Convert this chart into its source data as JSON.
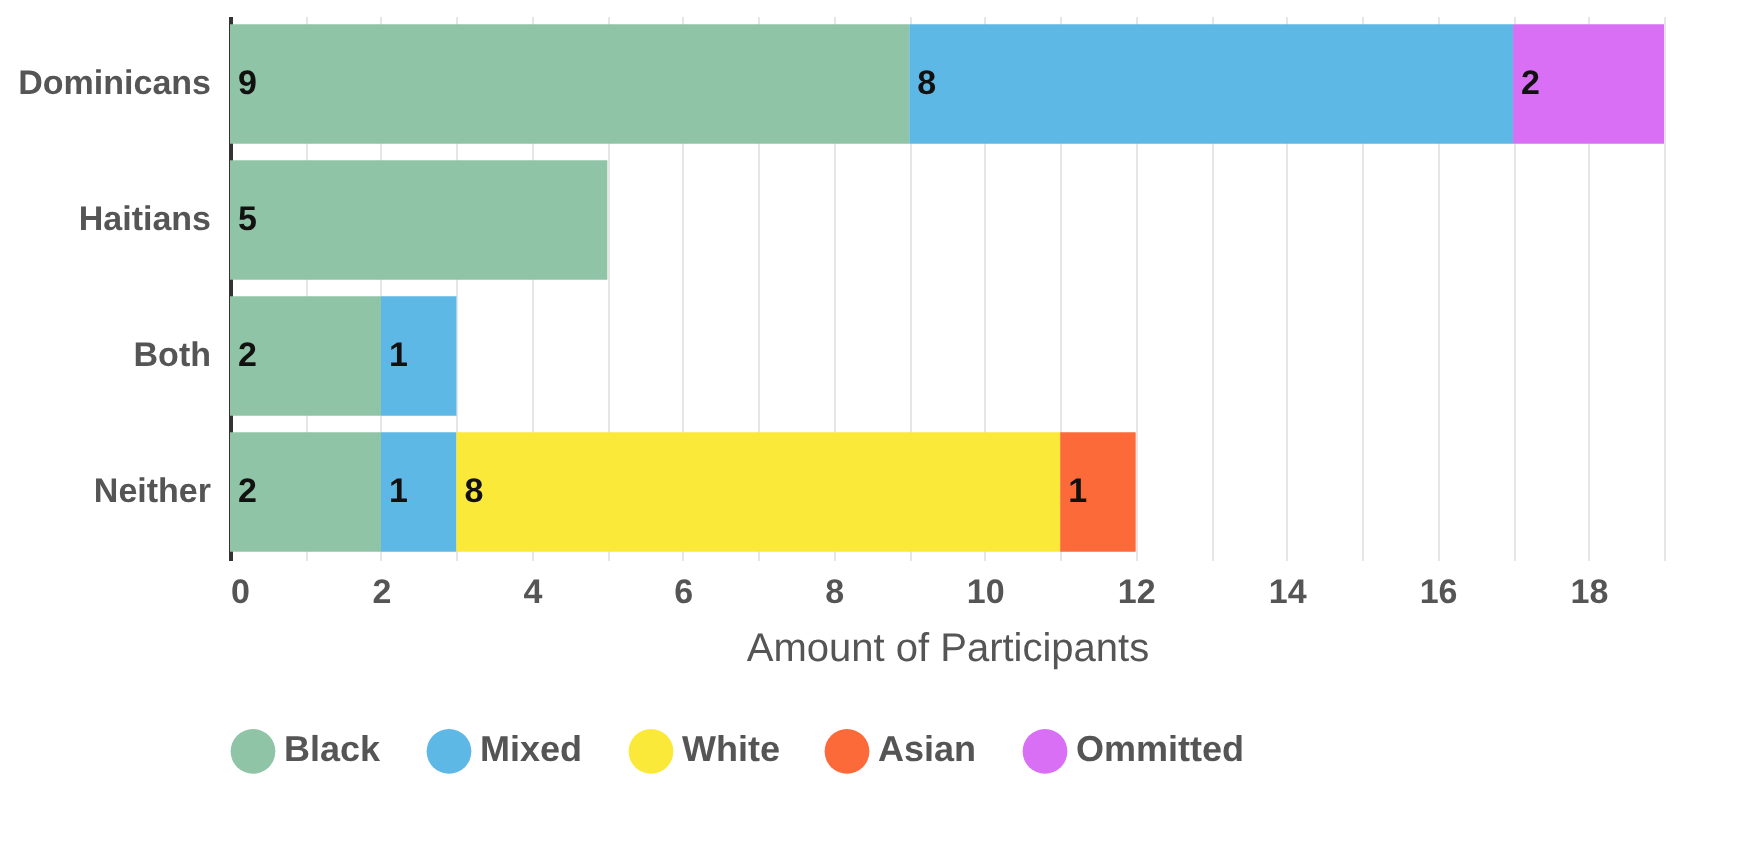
{
  "chart_data": {
    "type": "bar",
    "orientation": "horizontal",
    "stacked": true,
    "xlabel": "Amount of Participants",
    "categories": [
      "Dominicans",
      "Haitians",
      "Both",
      "Neither"
    ],
    "series": [
      {
        "name": "Black",
        "color": "#8fc4a7",
        "values": [
          9,
          5,
          2,
          2
        ]
      },
      {
        "name": "Mixed",
        "color": "#5eb8e5",
        "values": [
          8,
          null,
          1,
          1
        ]
      },
      {
        "name": "White",
        "color": "#fbe93a",
        "values": [
          null,
          null,
          null,
          8
        ]
      },
      {
        "name": "Asian",
        "color": "#fd6a3a",
        "values": [
          null,
          null,
          null,
          1
        ]
      },
      {
        "name": "Ommitted",
        "color": "#d96ff5",
        "values": [
          2,
          null,
          null,
          null
        ]
      }
    ],
    "xlim": [
      0,
      19
    ],
    "xticks": [
      0,
      {
        "value": 1,
        "label": null
      },
      2,
      {
        "value": 3,
        "label": null
      },
      4,
      {
        "value": 5,
        "label": null
      },
      6,
      {
        "value": 7,
        "label": null
      },
      8,
      {
        "value": 9,
        "label": null
      },
      10,
      {
        "value": 11,
        "label": null
      },
      12,
      {
        "value": 13,
        "label": null
      },
      14,
      {
        "value": 15,
        "label": null
      },
      16,
      {
        "value": 17,
        "label": null
      },
      18,
      {
        "value": 19,
        "label": null
      }
    ],
    "grid": "x",
    "legend": "bottom",
    "data_labels": true,
    "marker": "circle"
  }
}
